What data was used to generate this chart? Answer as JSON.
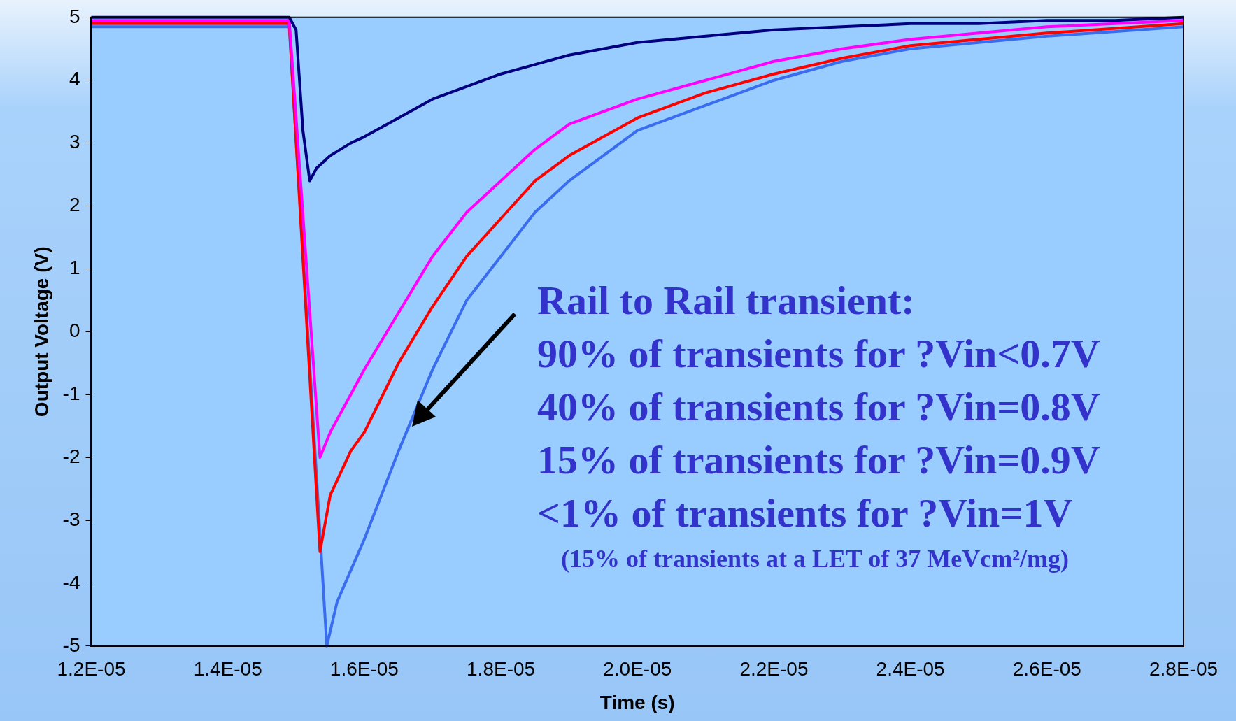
{
  "chart_data": {
    "type": "line",
    "xlabel": "Time (s)",
    "ylabel": "Output Voltage (V)",
    "xlim": [
      1.2e-05,
      2.8e-05
    ],
    "ylim": [
      -5,
      5
    ],
    "xticks": [
      {
        "value": 1.2e-05,
        "label": "1.2E-05"
      },
      {
        "value": 1.4e-05,
        "label": "1.4E-05"
      },
      {
        "value": 1.6e-05,
        "label": "1.6E-05"
      },
      {
        "value": 1.8e-05,
        "label": "1.8E-05"
      },
      {
        "value": 2e-05,
        "label": "2.0E-05"
      },
      {
        "value": 2.2e-05,
        "label": "2.2E-05"
      },
      {
        "value": 2.4e-05,
        "label": "2.4E-05"
      },
      {
        "value": 2.6e-05,
        "label": "2.6E-05"
      },
      {
        "value": 2.8e-05,
        "label": "2.8E-05"
      }
    ],
    "yticks": [
      -5,
      -4,
      -3,
      -2,
      -1,
      0,
      1,
      2,
      3,
      4,
      5
    ],
    "grid": false,
    "legend": false,
    "marker": "none",
    "line_style": "solid",
    "series": [
      {
        "color": "#000080",
        "x": [
          1.2e-05,
          1.3e-05,
          1.4e-05,
          1.49e-05,
          1.5e-05,
          1.51e-05,
          1.52e-05,
          1.53e-05,
          1.55e-05,
          1.58e-05,
          1.6e-05,
          1.65e-05,
          1.7e-05,
          1.75e-05,
          1.8e-05,
          1.9e-05,
          2e-05,
          2.1e-05,
          2.2e-05,
          2.3e-05,
          2.4e-05,
          2.5e-05,
          2.6e-05,
          2.7e-05,
          2.8e-05
        ],
        "values": [
          5,
          5,
          5,
          5,
          4.8,
          3.2,
          2.4,
          2.6,
          2.8,
          3.0,
          3.1,
          3.4,
          3.7,
          3.9,
          4.1,
          4.4,
          4.6,
          4.7,
          4.8,
          4.85,
          4.9,
          4.9,
          4.95,
          4.95,
          5
        ]
      },
      {
        "color": "#ff00ff",
        "x": [
          1.2e-05,
          1.3e-05,
          1.4e-05,
          1.49e-05,
          1.535e-05,
          1.55e-05,
          1.58e-05,
          1.6e-05,
          1.65e-05,
          1.7e-05,
          1.75e-05,
          1.8e-05,
          1.85e-05,
          1.9e-05,
          2e-05,
          2.1e-05,
          2.2e-05,
          2.3e-05,
          2.4e-05,
          2.6e-05,
          2.8e-05
        ],
        "values": [
          4.95,
          4.95,
          4.95,
          4.95,
          -2.0,
          -1.6,
          -1.0,
          -0.6,
          0.3,
          1.2,
          1.9,
          2.4,
          2.9,
          3.3,
          3.7,
          4.0,
          4.3,
          4.5,
          4.65,
          4.85,
          4.95
        ]
      },
      {
        "color": "#ff0000",
        "x": [
          1.2e-05,
          1.3e-05,
          1.4e-05,
          1.49e-05,
          1.535e-05,
          1.55e-05,
          1.58e-05,
          1.6e-05,
          1.65e-05,
          1.7e-05,
          1.75e-05,
          1.8e-05,
          1.85e-05,
          1.9e-05,
          2e-05,
          2.1e-05,
          2.2e-05,
          2.3e-05,
          2.4e-05,
          2.6e-05,
          2.8e-05
        ],
        "values": [
          4.9,
          4.9,
          4.9,
          4.9,
          -3.5,
          -2.6,
          -1.9,
          -1.6,
          -0.5,
          0.4,
          1.2,
          1.8,
          2.4,
          2.8,
          3.4,
          3.8,
          4.1,
          4.35,
          4.55,
          4.75,
          4.9
        ]
      },
      {
        "color": "#3a6cf0",
        "x": [
          1.2e-05,
          1.3e-05,
          1.4e-05,
          1.49e-05,
          1.545e-05,
          1.56e-05,
          1.58e-05,
          1.6e-05,
          1.65e-05,
          1.7e-05,
          1.75e-05,
          1.8e-05,
          1.85e-05,
          1.9e-05,
          2e-05,
          2.1e-05,
          2.2e-05,
          2.3e-05,
          2.4e-05,
          2.6e-05,
          2.8e-05
        ],
        "values": [
          4.85,
          4.85,
          4.85,
          4.85,
          -5,
          -4.3,
          -3.8,
          -3.3,
          -1.9,
          -0.6,
          0.5,
          1.2,
          1.9,
          2.4,
          3.2,
          3.6,
          4.0,
          4.3,
          4.5,
          4.7,
          4.85
        ]
      }
    ],
    "annotations": [
      "Rail to Rail transient:",
      "90% of transients for ?Vin<0.7V",
      "40% of transients for ?Vin=0.8V",
      "15% of transients for ?Vin=0.9V",
      "<1% of transients for ?Vin=1V",
      "(15% of transients at a LET of 37 MeVcm²/mg)"
    ]
  }
}
